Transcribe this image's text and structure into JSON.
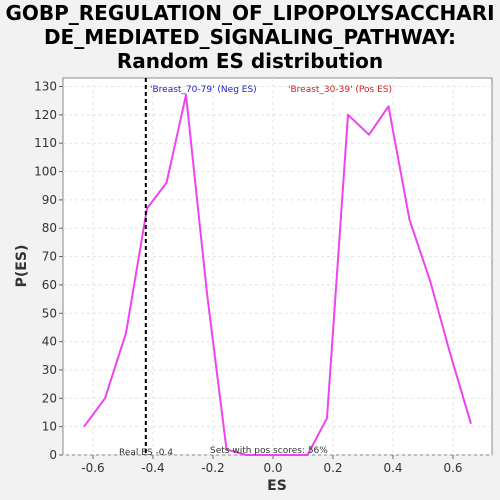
{
  "chart_data": {
    "type": "line",
    "title_lines": [
      "GOBP_REGULATION_OF_LIPOPOLYSACCHARI",
      "DE_MEDIATED_SIGNALING_PATHWAY:",
      "Random ES distribution"
    ],
    "xlabel": "ES",
    "ylabel": "P(ES)",
    "xlim": [
      -0.7,
      0.73
    ],
    "ylim": [
      0,
      133
    ],
    "x_ticks": [
      -0.6,
      -0.4,
      -0.2,
      0.0,
      0.2,
      0.4,
      0.6
    ],
    "x_tick_labels": [
      "-0.6",
      "-0.4",
      "-0.2",
      "0.0",
      "0.2",
      "0.4",
      "0.6"
    ],
    "y_ticks": [
      0,
      10,
      20,
      30,
      40,
      50,
      60,
      70,
      80,
      90,
      100,
      110,
      120,
      130
    ],
    "y_tick_labels": [
      "0",
      "10",
      "20",
      "30",
      "40",
      "50",
      "60",
      "70",
      "80",
      "90",
      "100",
      "110",
      "120",
      "130"
    ],
    "grid": true,
    "series": [
      {
        "color": "#ee44ee",
        "points": [
          [
            -0.63,
            10
          ],
          [
            -0.56,
            20
          ],
          [
            -0.49,
            43
          ],
          [
            -0.42,
            87
          ],
          [
            -0.355,
            96
          ],
          [
            -0.29,
            127
          ],
          [
            -0.22,
            57
          ],
          [
            -0.155,
            2
          ],
          [
            -0.09,
            0
          ],
          [
            -0.02,
            0
          ],
          [
            0.05,
            0
          ],
          [
            0.115,
            0
          ],
          [
            0.18,
            13
          ],
          [
            0.25,
            120
          ],
          [
            0.32,
            113
          ],
          [
            0.385,
            123
          ],
          [
            0.455,
            83
          ],
          [
            0.525,
            61
          ],
          [
            0.59,
            36
          ],
          [
            0.66,
            11
          ]
        ]
      }
    ],
    "real_es": {
      "x": -0.424,
      "label": "Real ES -0.4"
    },
    "annotations": {
      "neg_label": "'Breast_70-79' (Neg ES)",
      "neg_color": "#2222cc",
      "pos_label": "'Breast_30-39' (Pos ES)",
      "pos_color": "#cc2222",
      "pos_scores": "Sets with pos scores: 56%"
    }
  }
}
